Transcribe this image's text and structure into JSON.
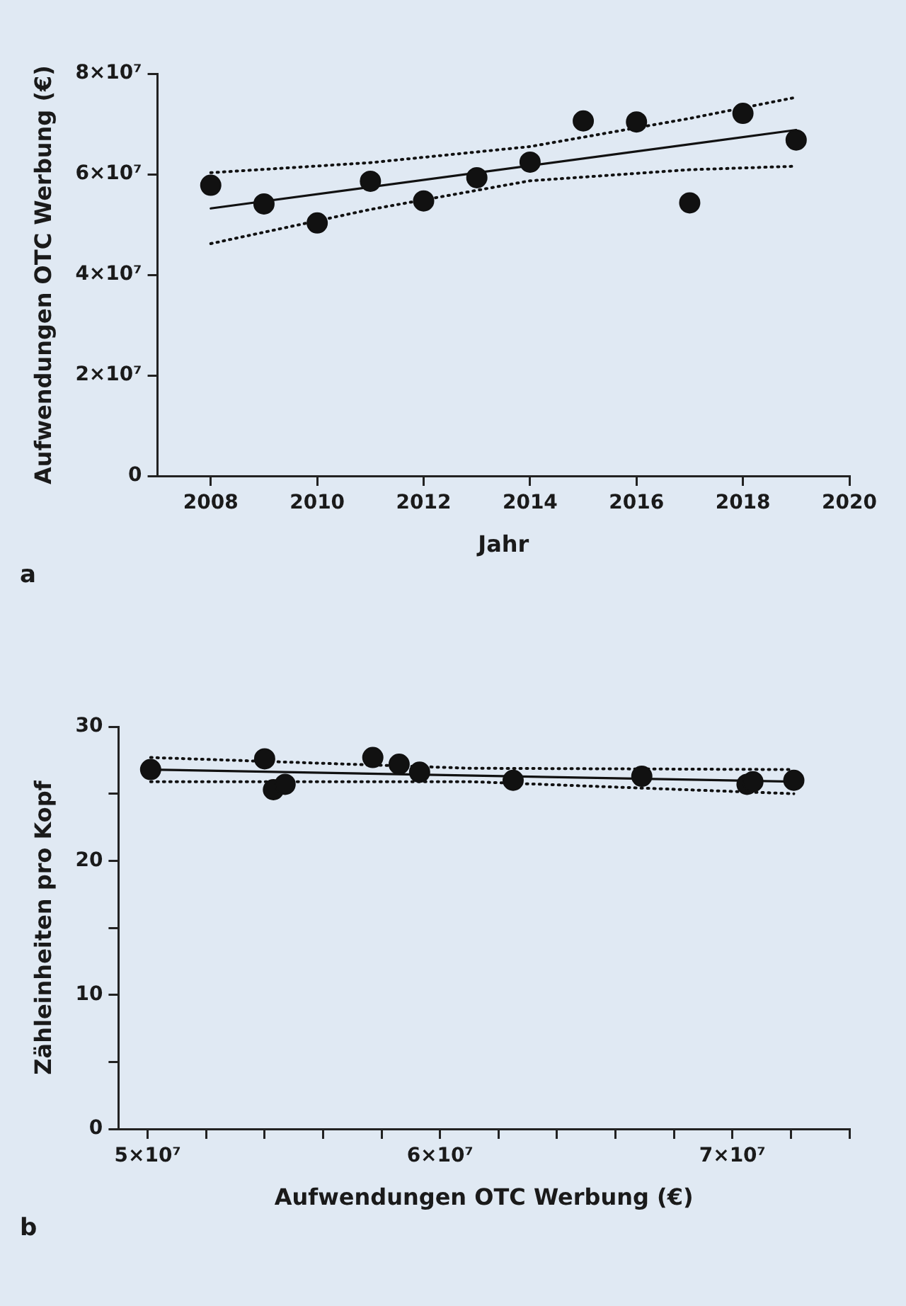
{
  "chart_data": [
    {
      "type": "scatter",
      "xlabel": "Jahr",
      "ylabel": "Aufwendungen OTC Werbung (€)",
      "xlim": [
        2007,
        2020
      ],
      "xticks": [
        2008,
        2010,
        2012,
        2014,
        2016,
        2018,
        2020
      ],
      "ylim": [
        0,
        80000000
      ],
      "yticks": [
        {
          "value": 0,
          "label": "0"
        },
        {
          "value": 20000000,
          "label": "2×10⁷"
        },
        {
          "value": 40000000,
          "label": "4×10⁷"
        },
        {
          "value": 60000000,
          "label": "6×10⁷"
        },
        {
          "value": 80000000,
          "label": "8×10⁷"
        }
      ],
      "grid": false,
      "annotations": [
        "a"
      ],
      "series": [
        {
          "marker": "circle",
          "color": "#111111",
          "x": [
            2008,
            2009,
            2010,
            2011,
            2012,
            2013,
            2014,
            2015,
            2016,
            2017,
            2018,
            2019
          ],
          "values": [
            57800000,
            54100000,
            50300000,
            58600000,
            54700000,
            59300000,
            62400000,
            70600000,
            70400000,
            54300000,
            72100000,
            66800000
          ]
        },
        {
          "type": "line",
          "color": "#111111",
          "line_style": "solid",
          "x": [
            2008,
            2019
          ],
          "values": [
            53200000,
            68800000
          ]
        },
        {
          "type": "line",
          "color": "#111111",
          "line_style": "dotted",
          "x": [
            2008,
            2011,
            2014,
            2017,
            2019
          ],
          "values": [
            60300000,
            62300000,
            65500000,
            71100000,
            75300000
          ]
        },
        {
          "type": "line",
          "color": "#111111",
          "line_style": "dotted",
          "x": [
            2008,
            2011,
            2014,
            2017,
            2019
          ],
          "values": [
            46200000,
            53000000,
            58700000,
            60900000,
            61600000
          ]
        }
      ]
    },
    {
      "type": "scatter",
      "xlabel": "Aufwendungen OTC Werbung (€)",
      "ylabel": "Zähleinheiten pro Kopf",
      "xlim": [
        49000000,
        74000000
      ],
      "xticks": [
        {
          "value": 50000000,
          "label": "5×10⁷"
        },
        {
          "value": 52000000,
          "label": null
        },
        {
          "value": 54000000,
          "label": null
        },
        {
          "value": 56000000,
          "label": null
        },
        {
          "value": 58000000,
          "label": null
        },
        {
          "value": 60000000,
          "label": "6×10⁷"
        },
        {
          "value": 62000000,
          "label": null
        },
        {
          "value": 64000000,
          "label": null
        },
        {
          "value": 66000000,
          "label": null
        },
        {
          "value": 68000000,
          "label": null
        },
        {
          "value": 70000000,
          "label": "7×10⁷"
        },
        {
          "value": 72000000,
          "label": null
        },
        {
          "value": 74000000,
          "label": null
        }
      ],
      "ylim": [
        0,
        30
      ],
      "yticks": [
        0,
        {
          "value": 5,
          "label": null
        },
        10,
        {
          "value": 15,
          "label": null
        },
        20,
        {
          "value": 25,
          "label": null
        },
        30
      ],
      "grid": false,
      "annotations": [
        "b"
      ],
      "series": [
        {
          "marker": "circle",
          "color": "#111111",
          "x": [
            50100000,
            54000000,
            54300000,
            54700000,
            57700000,
            58600000,
            59300000,
            62500000,
            66900000,
            70500000,
            70700000,
            72100000
          ],
          "values": [
            26.8,
            27.6,
            25.3,
            25.7,
            27.7,
            27.2,
            26.6,
            26.0,
            26.3,
            25.7,
            25.9,
            26.0
          ]
        },
        {
          "type": "line",
          "color": "#111111",
          "line_style": "solid",
          "x": [
            50100000,
            72100000
          ],
          "values": [
            26.8,
            25.9
          ]
        },
        {
          "type": "line",
          "color": "#111111",
          "line_style": "dotted",
          "x": [
            50100000,
            61000000,
            72100000
          ],
          "values": [
            27.7,
            26.9,
            26.8
          ]
        },
        {
          "type": "line",
          "color": "#111111",
          "line_style": "dotted",
          "x": [
            50100000,
            61000000,
            72100000
          ],
          "values": [
            25.9,
            25.9,
            25.0
          ]
        }
      ]
    }
  ]
}
